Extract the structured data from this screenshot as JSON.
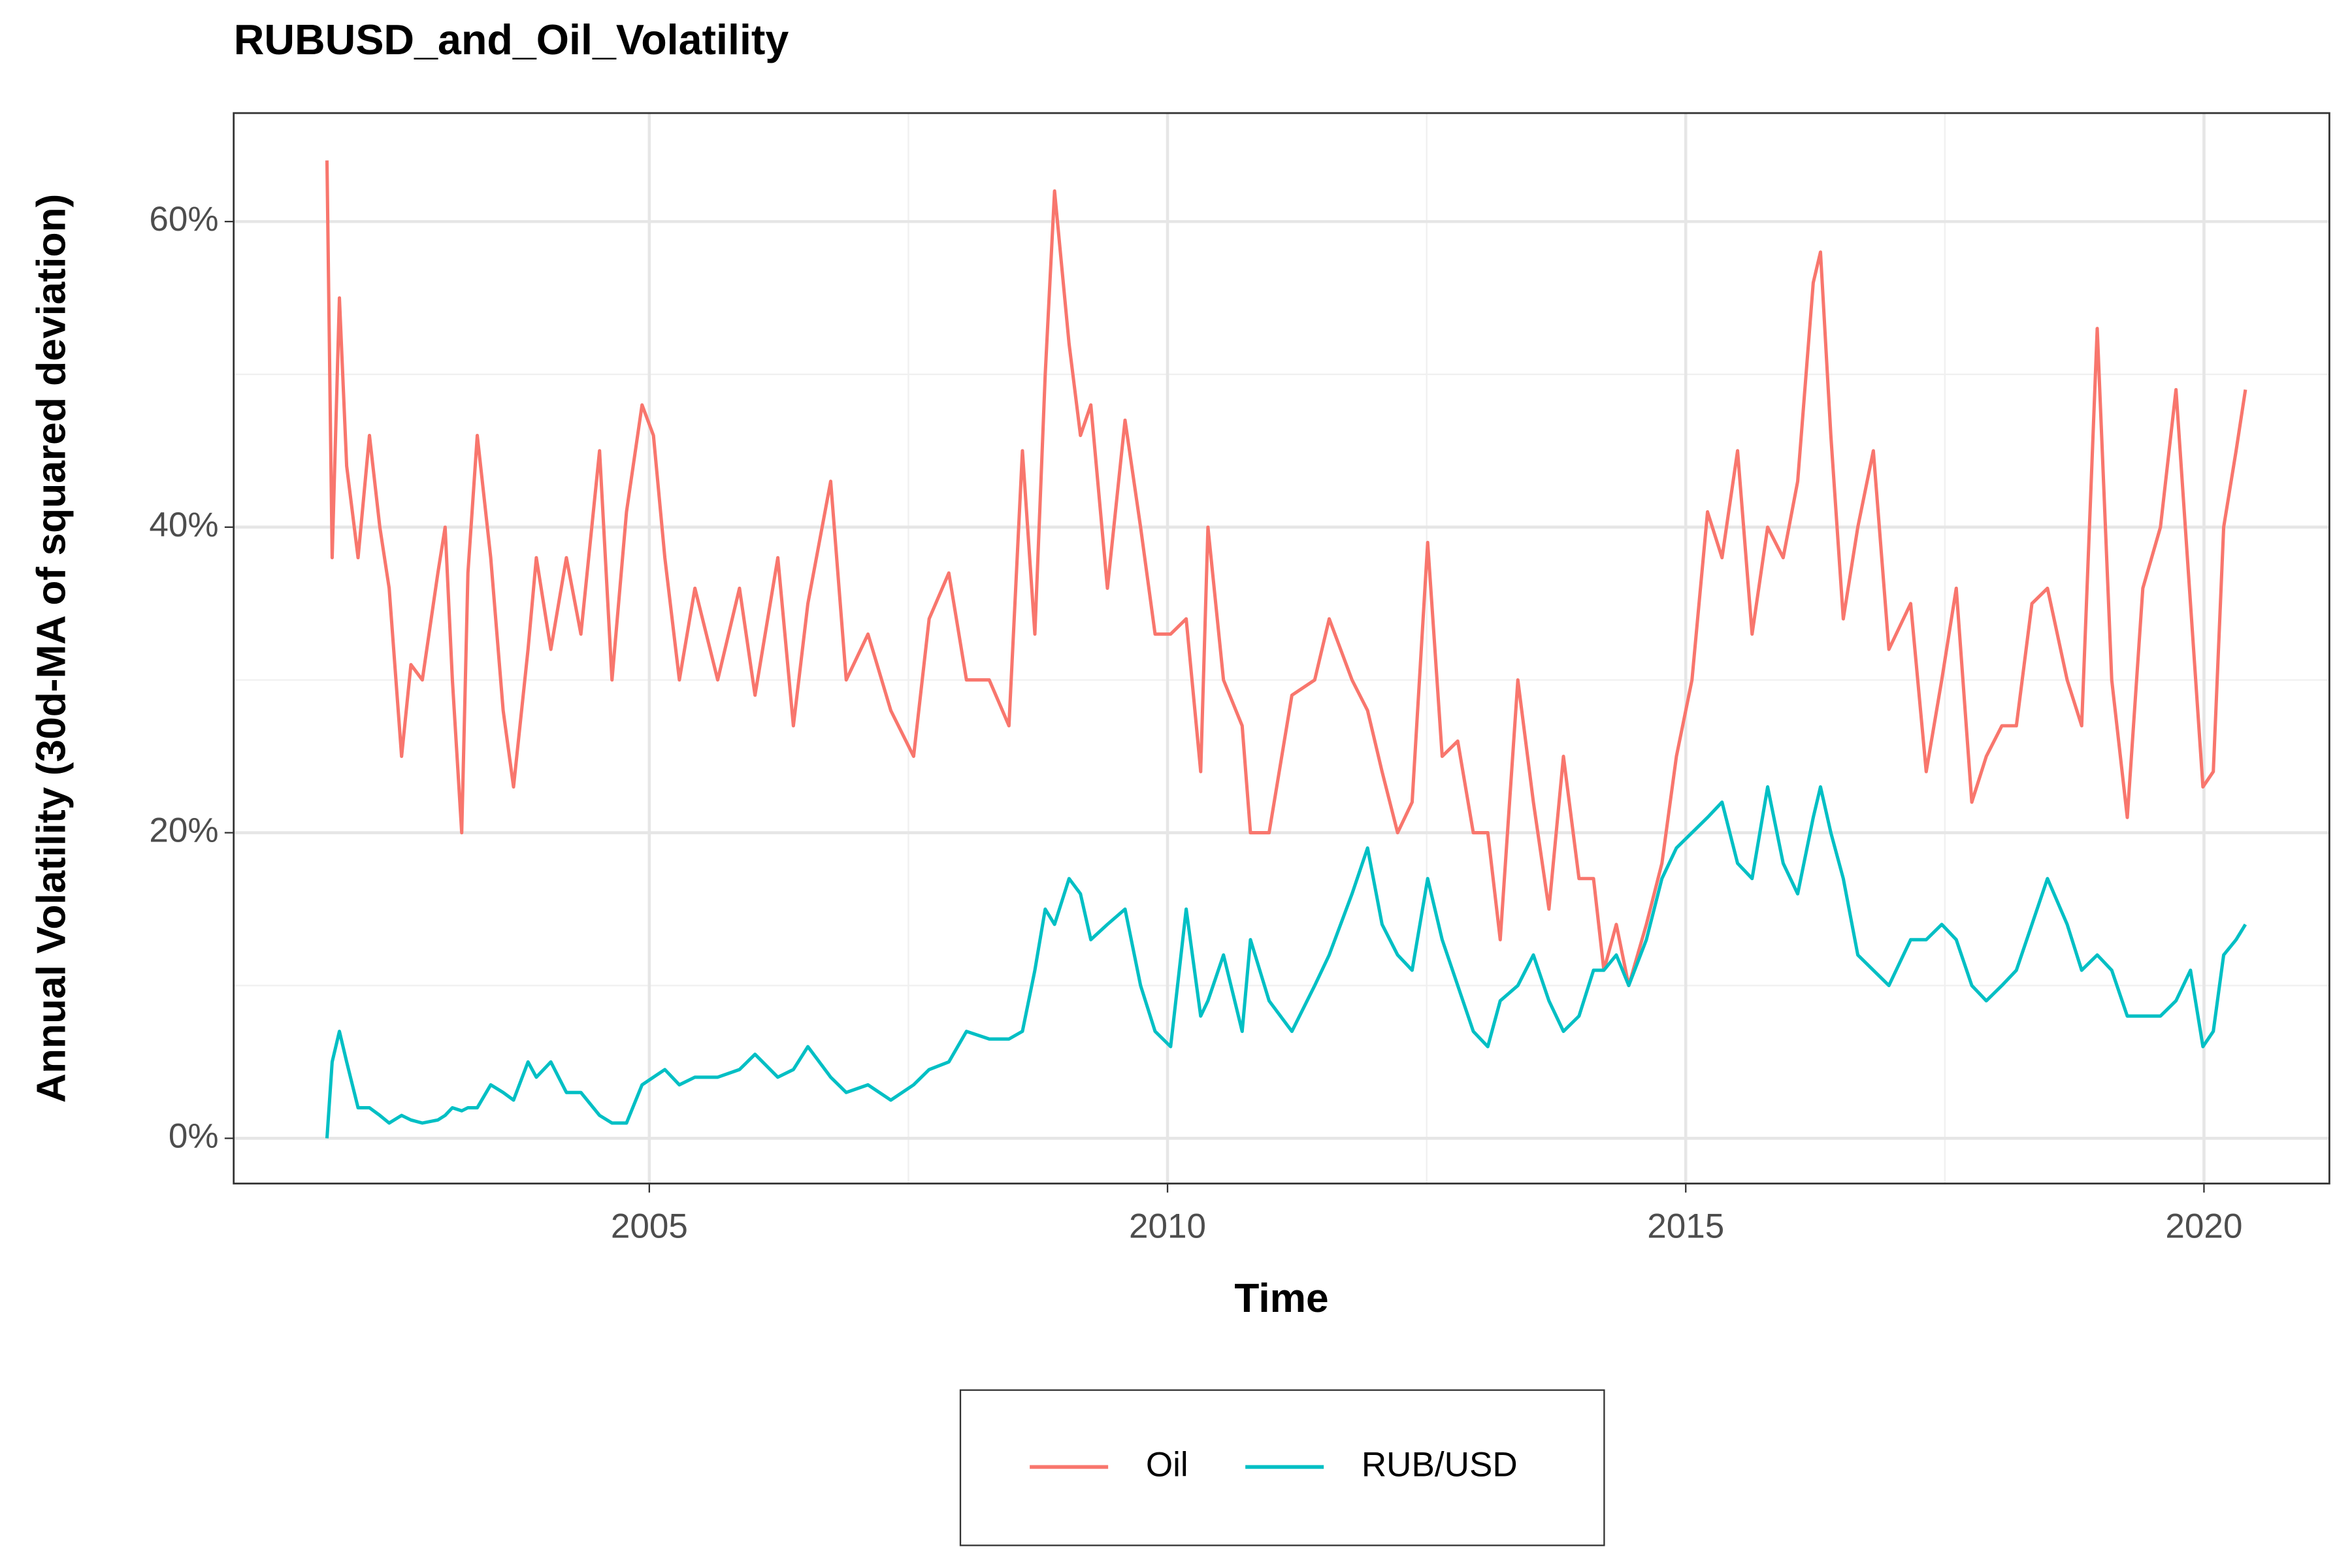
{
  "chart_data": {
    "type": "line",
    "title": "RUBUSD_and_Oil_Volatility",
    "x_label": "Time",
    "y_label": "Annual Volatility (30d-MA of squared deviation)",
    "x": [
      2001.89,
      2001.94,
      2002.01,
      2002.08,
      2002.19,
      2002.3,
      2002.4,
      2002.49,
      2002.61,
      2002.7,
      2002.81,
      2002.96,
      2003.03,
      2003.1,
      2003.19,
      2003.25,
      2003.34,
      2003.47,
      2003.59,
      2003.69,
      2003.83,
      2003.91,
      2004.05,
      2004.2,
      2004.34,
      2004.52,
      2004.64,
      2004.78,
      2004.93,
      2005.04,
      2005.15,
      2005.29,
      2005.44,
      2005.66,
      2005.87,
      2006.02,
      2006.24,
      2006.39,
      2006.53,
      2006.75,
      2006.9,
      2007.11,
      2007.33,
      2007.55,
      2007.7,
      2007.89,
      2008.06,
      2008.28,
      2008.47,
      2008.6,
      2008.72,
      2008.82,
      2008.91,
      2009.05,
      2009.16,
      2009.26,
      2009.42,
      2009.59,
      2009.74,
      2009.88,
      2010.03,
      2010.18,
      2010.32,
      2010.39,
      2010.54,
      2010.72,
      2010.8,
      2010.98,
      2011.2,
      2011.42,
      2011.56,
      2011.78,
      2011.93,
      2012.07,
      2012.22,
      2012.36,
      2012.51,
      2012.65,
      2012.8,
      2012.95,
      2013.09,
      2013.21,
      2013.38,
      2013.53,
      2013.68,
      2013.82,
      2013.97,
      2014.11,
      2014.21,
      2014.33,
      2014.45,
      2014.62,
      2014.77,
      2014.91,
      2015.06,
      2015.21,
      2015.35,
      2015.5,
      2015.64,
      2015.79,
      2015.94,
      2016.08,
      2016.23,
      2016.3,
      2016.4,
      2016.52,
      2016.66,
      2016.81,
      2016.96,
      2017.17,
      2017.32,
      2017.47,
      2017.61,
      2017.76,
      2017.9,
      2018.05,
      2018.19,
      2018.34,
      2018.49,
      2018.68,
      2018.82,
      2018.97,
      2019.11,
      2019.26,
      2019.41,
      2019.58,
      2019.73,
      2019.87,
      2019.99,
      2020.09,
      2020.19,
      2020.31,
      2020.4
    ],
    "series": [
      {
        "name": "Oil",
        "color": "#F8766D",
        "values": [
          64,
          38,
          55,
          44,
          38,
          46,
          40,
          36,
          25,
          31,
          30,
          37,
          40,
          30,
          20,
          37,
          46,
          38,
          28,
          23,
          32,
          38,
          32,
          38,
          33,
          45,
          30,
          41,
          48,
          46,
          38,
          30,
          36,
          30,
          36,
          29,
          38,
          27,
          35,
          43,
          30,
          33,
          28,
          25,
          34,
          37,
          30,
          30,
          27,
          45,
          33,
          50,
          62,
          52,
          46,
          48,
          36,
          47,
          40,
          33,
          33,
          34,
          24,
          40,
          30,
          27,
          20,
          20,
          29,
          30,
          34,
          30,
          28,
          24,
          20,
          22,
          39,
          25,
          26,
          20,
          20,
          13,
          30,
          22,
          15,
          25,
          17,
          17,
          11,
          14,
          10,
          14,
          18,
          25,
          30,
          41,
          38,
          45,
          33,
          40,
          38,
          43,
          56,
          58,
          46,
          34,
          40,
          45,
          32,
          35,
          24,
          30,
          36,
          22,
          25,
          27,
          27,
          35,
          36,
          30,
          27,
          53,
          30,
          21,
          36,
          40,
          49,
          35,
          23,
          24,
          40,
          45,
          49
        ]
      },
      {
        "name": "RUB/USD",
        "color": "#00BFC4",
        "values": [
          0,
          5,
          7,
          5,
          2,
          2,
          1.5,
          1,
          1.5,
          1.2,
          1,
          1.2,
          1.5,
          2,
          1.8,
          2,
          2,
          3.5,
          3,
          2.5,
          5,
          4,
          5,
          3,
          3,
          1.5,
          1,
          1,
          3.5,
          4,
          4.5,
          3.5,
          4,
          4,
          4.5,
          5.5,
          4,
          4.5,
          6,
          4,
          3,
          3.5,
          2.5,
          3.5,
          4.5,
          5,
          7,
          6.5,
          6.5,
          7,
          11,
          15,
          14,
          17,
          16,
          13,
          14,
          15,
          10,
          7,
          6,
          15,
          8,
          9,
          12,
          7,
          13,
          9,
          7,
          10,
          12,
          16,
          19,
          14,
          12,
          11,
          17,
          13,
          10,
          7,
          6,
          9,
          10,
          12,
          9,
          7,
          8,
          11,
          11,
          12,
          10,
          13,
          17,
          19,
          20,
          21,
          22,
          18,
          17,
          23,
          18,
          16,
          21,
          23,
          20,
          17,
          12,
          11,
          10,
          13,
          13,
          14,
          13,
          10,
          9,
          10,
          11,
          14,
          17,
          14,
          11,
          12,
          11,
          8,
          8,
          8,
          9,
          11,
          6,
          7,
          12,
          13,
          14
        ]
      }
    ],
    "xlim": [
      2000.99,
      2021.21
    ],
    "ylim": [
      -2.96,
      67.1
    ],
    "xticks": [
      2005,
      2010,
      2015,
      2020
    ],
    "yticks": [
      {
        "value": 0,
        "label": "0%"
      },
      {
        "value": 20,
        "label": "20%"
      },
      {
        "value": 40,
        "label": "40%"
      },
      {
        "value": 60,
        "label": "60%"
      }
    ],
    "grid": true,
    "legend_position": "bottom"
  }
}
